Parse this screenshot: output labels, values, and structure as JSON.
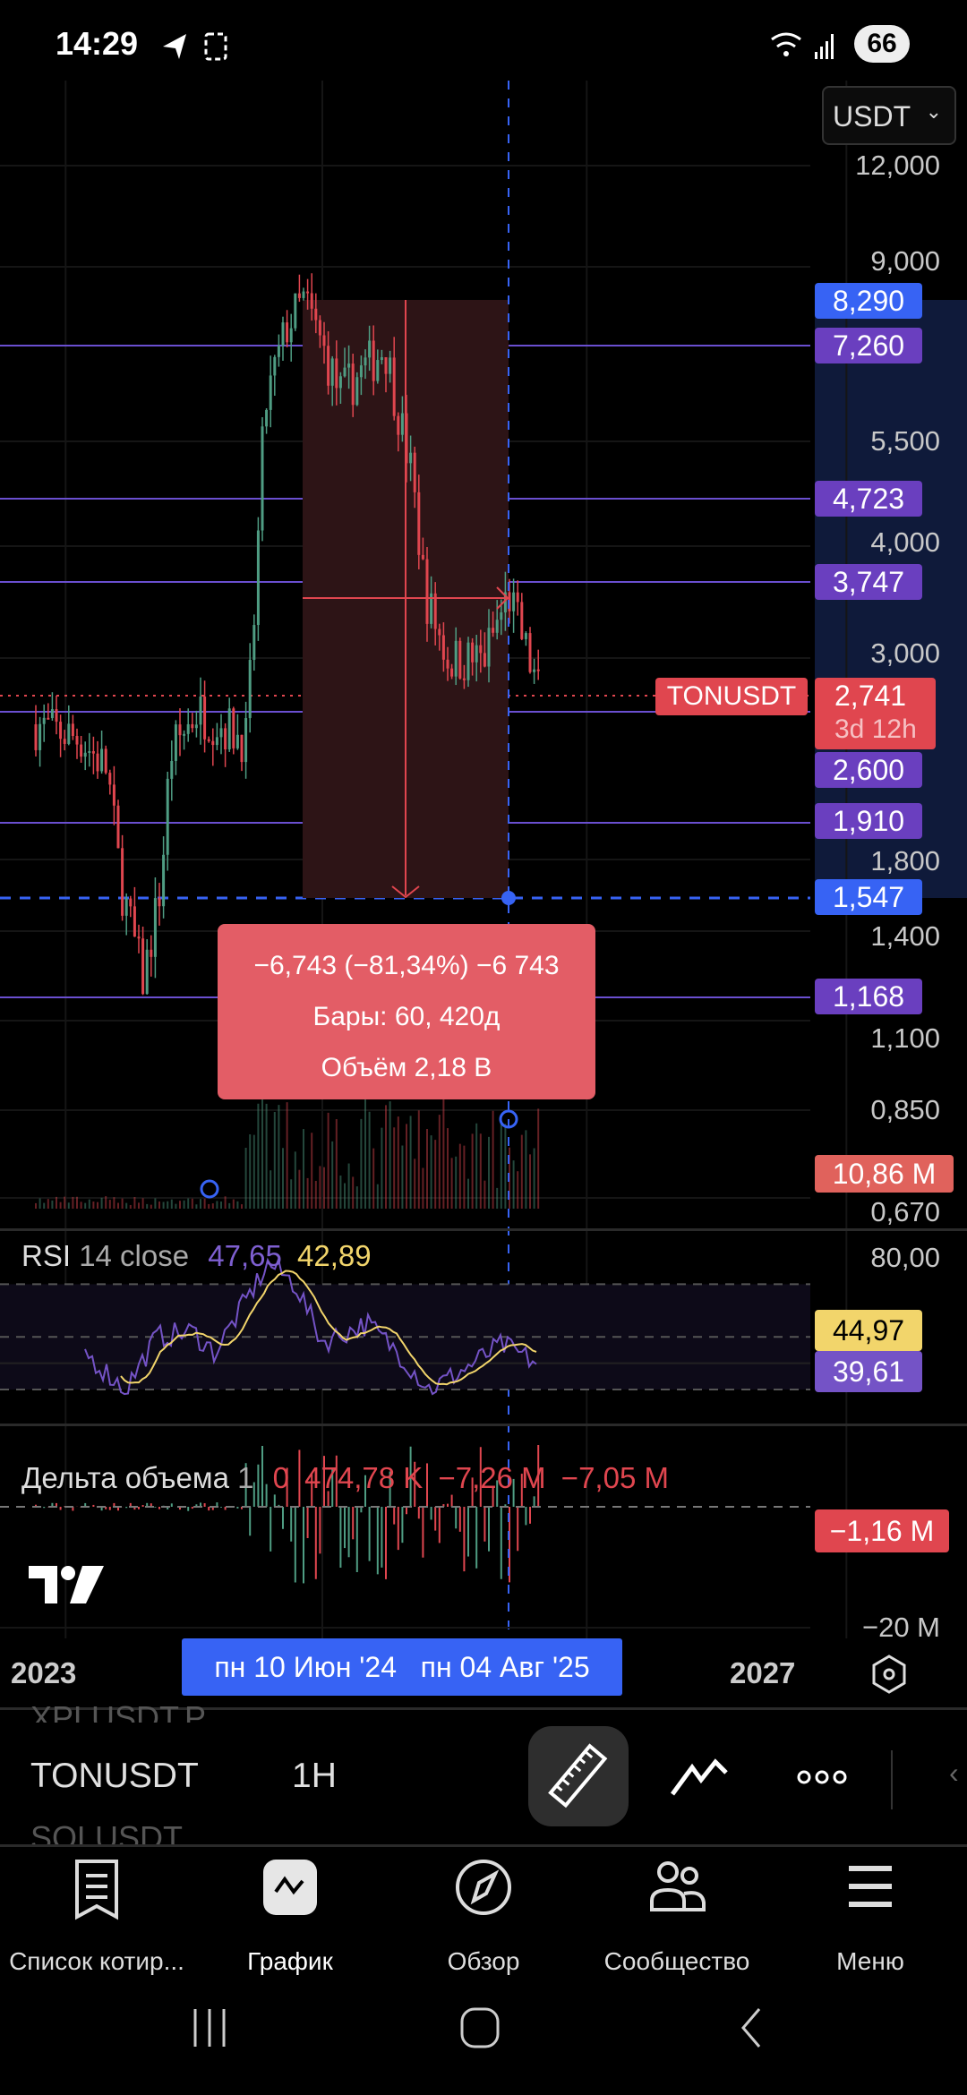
{
  "status_bar": {
    "time": "14:29",
    "battery": "66"
  },
  "currency_select": {
    "value": "USDT"
  },
  "price_axis": {
    "ticks": [
      "12,000",
      "9,000",
      "5,500",
      "4,000",
      "3,000",
      "1,800",
      "1,400",
      "1,100",
      "0,850",
      "0,670"
    ],
    "scale": "log"
  },
  "level_badges": [
    {
      "label": "8,290",
      "color": "#3763f4"
    },
    {
      "label": "7,260",
      "color": "#6a3fbf"
    },
    {
      "label": "4,723",
      "color": "#6a3fbf"
    },
    {
      "label": "3,747",
      "color": "#6a3fbf"
    },
    {
      "label": "2,600",
      "color": "#6a3fbf"
    },
    {
      "label": "1,910",
      "color": "#6a3fbf"
    },
    {
      "label": "1,547",
      "color": "#3763f4"
    },
    {
      "label": "1,168",
      "color": "#6a3fbf"
    }
  ],
  "last_price": {
    "symbol": "TONUSDT",
    "price": "2,741",
    "countdown": "3d 12h",
    "color": "#e0464f"
  },
  "volume_badge": "10,86 M",
  "measure_tooltip": {
    "line1": "−6,743 (−81,34%) −6 743",
    "line2": "Бары: 60, 420д",
    "line3": "Объём 2,18 B"
  },
  "rsi": {
    "title": "RSI",
    "params": "14 close",
    "value": "47,65",
    "ma_value": "42,89",
    "axis_top": "80,00",
    "badge_ma": "44,97",
    "badge_rsi": "39,61"
  },
  "delta": {
    "title": "Дельта объема",
    "param": "1",
    "v1": "0",
    "v2": "474,78 K",
    "v3": "−7,26 M",
    "v4": "−7,05 M",
    "badge": "−1,16 M",
    "axis_bottom": "−20 M"
  },
  "time_axis": {
    "left": "2023",
    "range_start": "пн 10 Июн '24",
    "range_end": "пн 04 Авг '25",
    "right": "2027"
  },
  "toolbar": {
    "symbol": "TONUSDT",
    "interval": "1H",
    "prev_symbol": "XPLUSDT.P",
    "next_symbol": "SOLUSDT"
  },
  "bottom_nav": [
    {
      "label": "Список котир...",
      "icon": "watchlist-icon"
    },
    {
      "label": "График",
      "icon": "chart-icon",
      "active": true
    },
    {
      "label": "Обзор",
      "icon": "compass-icon"
    },
    {
      "label": "Сообщество",
      "icon": "community-icon"
    },
    {
      "label": "Меню",
      "icon": "menu-icon"
    }
  ]
}
